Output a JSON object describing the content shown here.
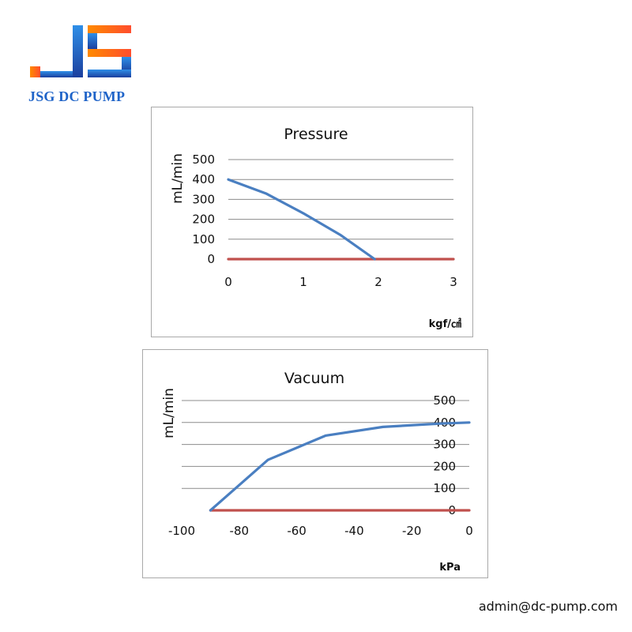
{
  "brand": {
    "name": "JSG DC PUMP",
    "colors": {
      "blue": "#1f5fc7",
      "orange": "#ff6a1f"
    }
  },
  "contact": {
    "email": "admin@dc-pump.com"
  },
  "chart_data": [
    {
      "type": "line",
      "title": "Pressure",
      "xlabel": "kgf/㎠",
      "ylabel": "mL/min",
      "xlim": [
        0,
        3
      ],
      "ylim": [
        0,
        500
      ],
      "xticks": [
        0,
        1,
        2,
        3
      ],
      "yticks": [
        0,
        100,
        200,
        300,
        400,
        500
      ],
      "grid": true,
      "y_axis_side": "left",
      "series": [
        {
          "color": "#4a7fc1",
          "x": [
            0,
            0.5,
            1.0,
            1.5,
            1.95
          ],
          "y": [
            400,
            330,
            230,
            120,
            0
          ]
        },
        {
          "color": "#c0504d",
          "x": [
            0,
            3
          ],
          "y": [
            0,
            0
          ]
        }
      ]
    },
    {
      "type": "line",
      "title": "Vacuum",
      "xlabel": "kPa",
      "ylabel": "mL/min",
      "xlim": [
        -100,
        0
      ],
      "ylim": [
        0,
        500
      ],
      "xticks": [
        -100,
        -80,
        -60,
        -40,
        -20,
        0
      ],
      "yticks": [
        0,
        100,
        200,
        300,
        400,
        500
      ],
      "grid": true,
      "y_axis_side": "right",
      "series": [
        {
          "color": "#4a7fc1",
          "x": [
            -90,
            -70,
            -50,
            -30,
            -10,
            0
          ],
          "y": [
            0,
            230,
            340,
            380,
            395,
            400
          ]
        },
        {
          "color": "#c0504d",
          "x": [
            -90,
            0
          ],
          "y": [
            0,
            0
          ]
        }
      ]
    }
  ]
}
